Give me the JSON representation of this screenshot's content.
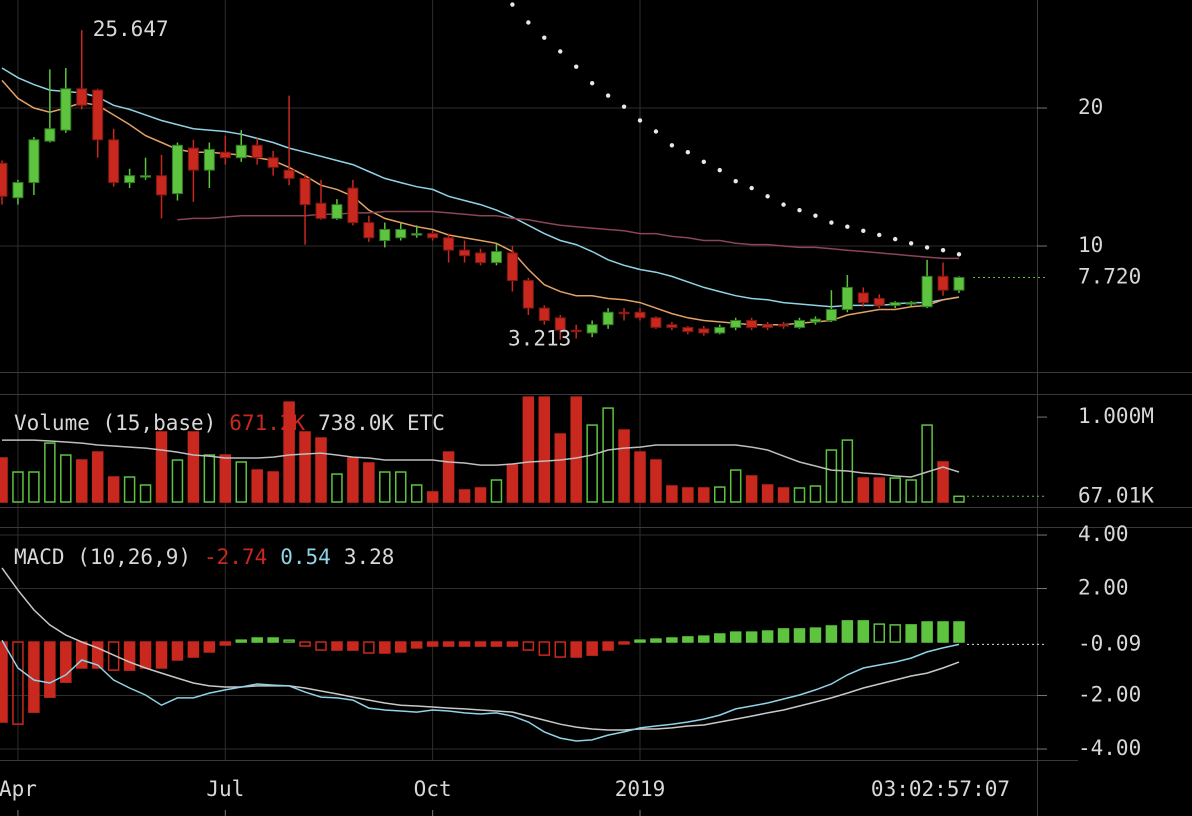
{
  "chart_data": [
    {
      "type": "candlestick",
      "categories": [
        null,
        "Apr",
        null,
        null,
        null,
        null,
        null,
        null,
        null,
        null,
        null,
        null,
        null,
        null,
        "Jul",
        null,
        null,
        null,
        null,
        null,
        null,
        null,
        null,
        null,
        null,
        null,
        null,
        "Oct",
        null,
        null,
        null,
        null,
        null,
        null,
        null,
        null,
        null,
        null,
        null,
        null,
        "2019",
        null,
        null,
        null,
        null,
        null,
        null,
        null,
        null,
        null,
        null,
        null,
        null,
        null,
        null,
        null,
        null,
        null,
        null,
        null,
        null
      ],
      "open": [
        16.0,
        13.5,
        14.6,
        17.6,
        18.4,
        21.4,
        21.3,
        17.7,
        14.6,
        15.0,
        15.1,
        13.8,
        17.1,
        15.5,
        16.8,
        16.4,
        17.3,
        16.4,
        15.5,
        14.9,
        13.1,
        12.0,
        14.2,
        11.7,
        10.4,
        10.6,
        10.8,
        10.9,
        10.6,
        9.7,
        9.5,
        8.8,
        9.5,
        7.5,
        5.5,
        4.8,
        3.9,
        3.7,
        4.3,
        5.2,
        5.2,
        4.8,
        4.3,
        4.1,
        4.0,
        3.7,
        4.1,
        4.6,
        4.3,
        4.3,
        4.1,
        4.5,
        4.6,
        5.4,
        6.6,
        6.2,
        5.7,
        5.8,
        5.6,
        7.8,
        6.8
      ],
      "high": [
        16.2,
        14.8,
        17.9,
        22.8,
        22.9,
        25.647,
        21.4,
        18.5,
        15.6,
        16.4,
        16.6,
        17.5,
        17.7,
        17.5,
        18.0,
        18.4,
        17.8,
        16.9,
        20.9,
        15.2,
        14.8,
        13.4,
        14.8,
        12.2,
        11.7,
        11.7,
        11.5,
        11.1,
        10.9,
        10.4,
        9.8,
        10.2,
        10.0,
        7.7,
        5.7,
        5.0,
        4.3,
        4.6,
        5.5,
        5.5,
        5.5,
        4.9,
        4.5,
        4.2,
        4.2,
        4.3,
        4.8,
        4.8,
        4.5,
        4.5,
        4.8,
        4.9,
        6.8,
        7.9,
        7.0,
        6.5,
        6.0,
        6.0,
        9.0,
        8.8,
        7.8
      ],
      "low": [
        13.0,
        13.0,
        13.7,
        17.5,
        18.2,
        19.9,
        16.4,
        14.3,
        14.2,
        14.8,
        12.0,
        13.3,
        13.2,
        14.2,
        15.9,
        16.1,
        15.9,
        15.1,
        14.4,
        10.1,
        11.9,
        11.9,
        11.5,
        10.3,
        9.9,
        10.4,
        10.6,
        10.4,
        8.8,
        8.8,
        8.6,
        8.6,
        6.7,
        5.0,
        4.3,
        3.213,
        3.3,
        3.4,
        4.0,
        4.6,
        4.6,
        4.0,
        3.9,
        3.6,
        3.5,
        3.6,
        3.9,
        3.9,
        3.9,
        4.0,
        4.0,
        4.3,
        4.5,
        5.2,
        5.6,
        5.5,
        5.5,
        5.6,
        5.5,
        6.4,
        6.6
      ],
      "close": [
        13.6,
        14.6,
        17.7,
        18.5,
        21.4,
        20.2,
        17.7,
        14.6,
        15.1,
        15.1,
        13.7,
        17.3,
        15.5,
        17.0,
        16.4,
        17.3,
        16.4,
        15.7,
        14.9,
        13.0,
        12.0,
        13.0,
        11.7,
        10.6,
        11.2,
        11.2,
        10.9,
        10.6,
        9.7,
        9.3,
        8.8,
        9.6,
        7.5,
        5.5,
        4.6,
        3.9,
        3.8,
        4.3,
        5.2,
        5.1,
        4.8,
        4.1,
        4.1,
        3.8,
        3.7,
        4.1,
        4.6,
        4.1,
        4.1,
        4.2,
        4.6,
        4.7,
        5.4,
        7.0,
        5.9,
        5.7,
        5.9,
        5.9,
        7.8,
        6.8,
        7.72
      ],
      "up_color": "#5ec43f",
      "down_color": "#c8281e",
      "series": [
        {
          "color": "#8fd3e6",
          "values": [
            22.9,
            22.2,
            21.7,
            21.3,
            21.2,
            21.1,
            20.8,
            20.2,
            19.9,
            19.5,
            19.1,
            18.8,
            18.5,
            18.4,
            18.3,
            18.1,
            17.8,
            17.5,
            17.1,
            16.8,
            16.5,
            16.2,
            15.9,
            15.4,
            14.9,
            14.6,
            14.3,
            14.1,
            13.6,
            13.3,
            13.0,
            12.6,
            12.1,
            11.5,
            10.9,
            10.4,
            10.1,
            9.6,
            9.0,
            8.6,
            8.3,
            8.1,
            7.8,
            7.4,
            7.0,
            6.7,
            6.4,
            6.2,
            6.1,
            5.9,
            5.8,
            5.7,
            5.6,
            5.7,
            5.7,
            5.7,
            5.8,
            5.9,
            5.9,
            6.1,
            6.3
          ]
        },
        {
          "color": "#e3a164",
          "values": [
            22.0,
            20.7,
            20.0,
            19.7,
            20.0,
            20.4,
            20.2,
            19.5,
            18.8,
            18.0,
            17.5,
            17.0,
            16.8,
            16.8,
            16.7,
            16.6,
            16.4,
            16.2,
            15.7,
            15.1,
            14.4,
            14.1,
            13.6,
            12.6,
            12.0,
            11.7,
            11.4,
            11.2,
            10.8,
            10.6,
            10.4,
            10.2,
            9.6,
            8.3,
            7.2,
            6.7,
            6.4,
            6.4,
            6.2,
            6.1,
            5.9,
            5.5,
            5.1,
            4.8,
            4.6,
            4.5,
            4.4,
            4.3,
            4.3,
            4.3,
            4.4,
            4.5,
            4.6,
            5.0,
            5.2,
            5.4,
            5.4,
            5.6,
            5.7,
            6.1,
            6.3
          ]
        },
        {
          "color": "#8a4556",
          "values": [
            null,
            null,
            null,
            null,
            null,
            null,
            null,
            null,
            null,
            null,
            null,
            11.9,
            12.0,
            12.0,
            12.1,
            12.2,
            12.2,
            12.2,
            12.2,
            12.2,
            12.3,
            12.3,
            12.4,
            12.4,
            12.5,
            12.5,
            12.5,
            12.5,
            12.4,
            12.3,
            12.2,
            12.2,
            12.0,
            11.9,
            11.7,
            11.5,
            11.4,
            11.3,
            11.2,
            11.1,
            10.9,
            10.9,
            10.7,
            10.6,
            10.4,
            10.4,
            10.2,
            10.1,
            10.1,
            10.0,
            9.9,
            9.9,
            9.8,
            9.7,
            9.6,
            9.5,
            9.4,
            9.3,
            9.2,
            9.1,
            9.1
          ]
        }
      ],
      "sar": {
        "color": "#e8e8e8",
        "values": [
          null,
          null,
          null,
          null,
          null,
          null,
          null,
          null,
          null,
          null,
          null,
          null,
          null,
          null,
          null,
          null,
          null,
          null,
          null,
          null,
          null,
          null,
          null,
          null,
          null,
          null,
          null,
          null,
          null,
          null,
          null,
          null,
          27.5,
          26.2,
          25.1,
          24.1,
          23.0,
          21.8,
          20.9,
          20.1,
          19.1,
          18.3,
          17.3,
          16.8,
          16.1,
          15.5,
          14.7,
          14.2,
          13.6,
          13.0,
          12.6,
          12.2,
          11.7,
          11.4,
          11.1,
          10.8,
          10.5,
          10.2,
          9.9,
          9.7,
          9.4
        ]
      },
      "ylim": [
        0.87,
        27.83
      ],
      "yticks": [
        10,
        20
      ],
      "grid": true,
      "last_label": "7.720",
      "timer": "03:02:57:07"
    },
    {
      "type": "volume",
      "legend": [
        "Volume (15,base)",
        "671.2K",
        "738.0K",
        "ETC"
      ],
      "values": [
        518000,
        353000,
        353000,
        694000,
        553000,
        494000,
        588000,
        294000,
        294000,
        200000,
        824000,
        494000,
        824000,
        553000,
        553000,
        471000,
        376000,
        353000,
        1176000,
        824000,
        753000,
        329000,
        518000,
        459000,
        353000,
        353000,
        200000,
        118000,
        588000,
        141000,
        165000,
        259000,
        435000,
        1235000,
        1235000,
        800000,
        1235000,
        906000,
        1106000,
        847000,
        588000,
        494000,
        188000,
        165000,
        165000,
        176000,
        376000,
        306000,
        200000,
        165000,
        165000,
        188000,
        612000,
        729000,
        282000,
        282000,
        282000,
        259000,
        906000,
        471000,
        67010
      ],
      "ma": {
        "color": "#bdbdbd",
        "values": [
          729000,
          729000,
          729000,
          718000,
          706000,
          694000,
          671000,
          659000,
          647000,
          635000,
          612000,
          588000,
          553000,
          541000,
          518000,
          518000,
          518000,
          529000,
          553000,
          565000,
          576000,
          553000,
          529000,
          518000,
          494000,
          494000,
          494000,
          494000,
          471000,
          459000,
          435000,
          435000,
          447000,
          471000,
          482000,
          494000,
          518000,
          553000,
          612000,
          635000,
          647000,
          671000,
          671000,
          671000,
          671000,
          671000,
          671000,
          647000,
          612000,
          541000,
          471000,
          424000,
          376000,
          365000,
          341000,
          329000,
          306000,
          294000,
          353000,
          412000,
          353000
        ]
      },
      "ylim": [
        0,
        1260000
      ],
      "yticks": [
        {
          "value": 1000000,
          "label": "1.000M"
        }
      ],
      "last_label": "67.01K"
    },
    {
      "type": "macd",
      "legend": [
        "MACD (10,26,9)",
        -2.74,
        0.54,
        3.28
      ],
      "histogram": [
        -2.99,
        -3.07,
        -2.62,
        -2.06,
        -1.5,
        -0.97,
        -0.97,
        -1.05,
        -1.05,
        -0.97,
        -0.97,
        -0.67,
        -0.56,
        -0.37,
        -0.11,
        0.07,
        0.15,
        0.15,
        0.07,
        -0.15,
        -0.3,
        -0.3,
        -0.3,
        -0.41,
        -0.41,
        -0.37,
        -0.22,
        -0.15,
        -0.15,
        -0.15,
        -0.15,
        -0.15,
        -0.15,
        -0.3,
        -0.49,
        -0.56,
        -0.56,
        -0.49,
        -0.3,
        -0.07,
        0.07,
        0.11,
        0.15,
        0.19,
        0.22,
        0.3,
        0.37,
        0.37,
        0.41,
        0.49,
        0.49,
        0.52,
        0.6,
        0.79,
        0.79,
        0.67,
        0.64,
        0.64,
        0.75,
        0.75,
        0.75
      ],
      "macd": {
        "color": "#8fd3e6",
        "values": [
          0.07,
          -0.97,
          -1.42,
          -1.53,
          -1.23,
          -0.67,
          -0.86,
          -1.42,
          -1.72,
          -1.98,
          -2.36,
          -2.09,
          -2.09,
          -1.91,
          -1.79,
          -1.68,
          -1.57,
          -1.61,
          -1.64,
          -1.87,
          -2.06,
          -2.09,
          -2.17,
          -2.47,
          -2.54,
          -2.58,
          -2.62,
          -2.54,
          -2.58,
          -2.65,
          -2.69,
          -2.65,
          -2.77,
          -2.99,
          -3.36,
          -3.59,
          -3.7,
          -3.66,
          -3.48,
          -3.36,
          -3.21,
          -3.14,
          -3.07,
          -2.99,
          -2.88,
          -2.73,
          -2.5,
          -2.39,
          -2.28,
          -2.13,
          -1.98,
          -1.79,
          -1.57,
          -1.23,
          -0.97,
          -0.86,
          -0.75,
          -0.6,
          -0.37,
          -0.22,
          -0.09
        ]
      },
      "signal": {
        "color": "#c8c8c8",
        "values": [
          2.77,
          1.94,
          1.2,
          0.64,
          0.26,
          0.0,
          -0.22,
          -0.49,
          -0.75,
          -0.97,
          -1.16,
          -1.35,
          -1.53,
          -1.64,
          -1.68,
          -1.68,
          -1.64,
          -1.64,
          -1.64,
          -1.72,
          -1.83,
          -1.94,
          -2.06,
          -2.17,
          -2.28,
          -2.36,
          -2.39,
          -2.43,
          -2.47,
          -2.5,
          -2.54,
          -2.58,
          -2.62,
          -2.77,
          -2.92,
          -3.07,
          -3.18,
          -3.25,
          -3.29,
          -3.29,
          -3.25,
          -3.25,
          -3.21,
          -3.14,
          -3.1,
          -2.99,
          -2.88,
          -2.77,
          -2.65,
          -2.54,
          -2.39,
          -2.24,
          -2.09,
          -1.91,
          -1.72,
          -1.57,
          -1.42,
          -1.27,
          -1.16,
          -0.97,
          -0.75
        ]
      },
      "ylim": [
        -4.41,
        4.3
      ],
      "yticks": [
        {
          "value": 4,
          "label": "4.00"
        },
        {
          "value": 2,
          "label": "2.00"
        },
        {
          "value": -2,
          "label": "-2.00"
        },
        {
          "value": -4,
          "label": "-4.00"
        }
      ]
    }
  ]
}
